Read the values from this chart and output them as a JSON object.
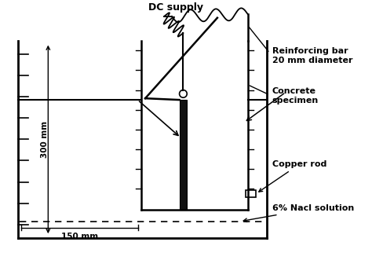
{
  "labels": {
    "dc_supply": "DC supply",
    "reinforcing_bar": "Reinforcing bar\n20 mm diameter",
    "concrete_specimen": "Concrete\nspecimen",
    "copper_rod": "Copper rod",
    "nacl_solution": "6% Nacl solution",
    "height_label": "300 mm",
    "width_label": "150 mm"
  },
  "colors": {
    "black": "#000000",
    "white": "#ffffff",
    "dark_fill": "#111111"
  },
  "layout": {
    "fig_w": 4.74,
    "fig_h": 3.22,
    "dpi": 100
  }
}
